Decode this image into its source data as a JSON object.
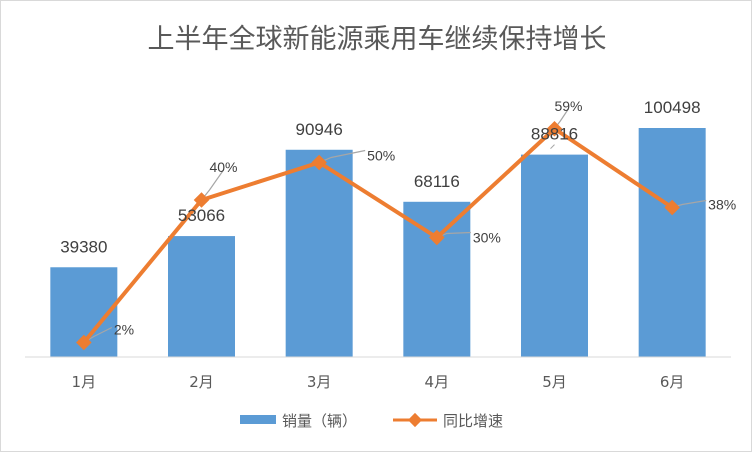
{
  "chart_data": {
    "type": "bar",
    "title": "上半年全球新能源乘用车继续保持增长",
    "categories": [
      "1月",
      "2月",
      "3月",
      "4月",
      "5月",
      "6月"
    ],
    "series": [
      {
        "name": "销量（辆）",
        "type": "bar",
        "axis": "primary",
        "values": [
          39380,
          53066,
          90946,
          68116,
          88816,
          100498
        ],
        "color": "#5B9BD5"
      },
      {
        "name": "同比增速",
        "type": "line",
        "axis": "secondary",
        "values": [
          2,
          40,
          50,
          30,
          59,
          38
        ],
        "labels": [
          "2%",
          "40%",
          "50%",
          "30%",
          "59%",
          "38%"
        ],
        "color": "#ED7D31"
      }
    ],
    "ylim": [
      0,
      100498
    ],
    "y2lim": [
      0,
      60
    ],
    "grid": false,
    "legend": "bottom"
  }
}
